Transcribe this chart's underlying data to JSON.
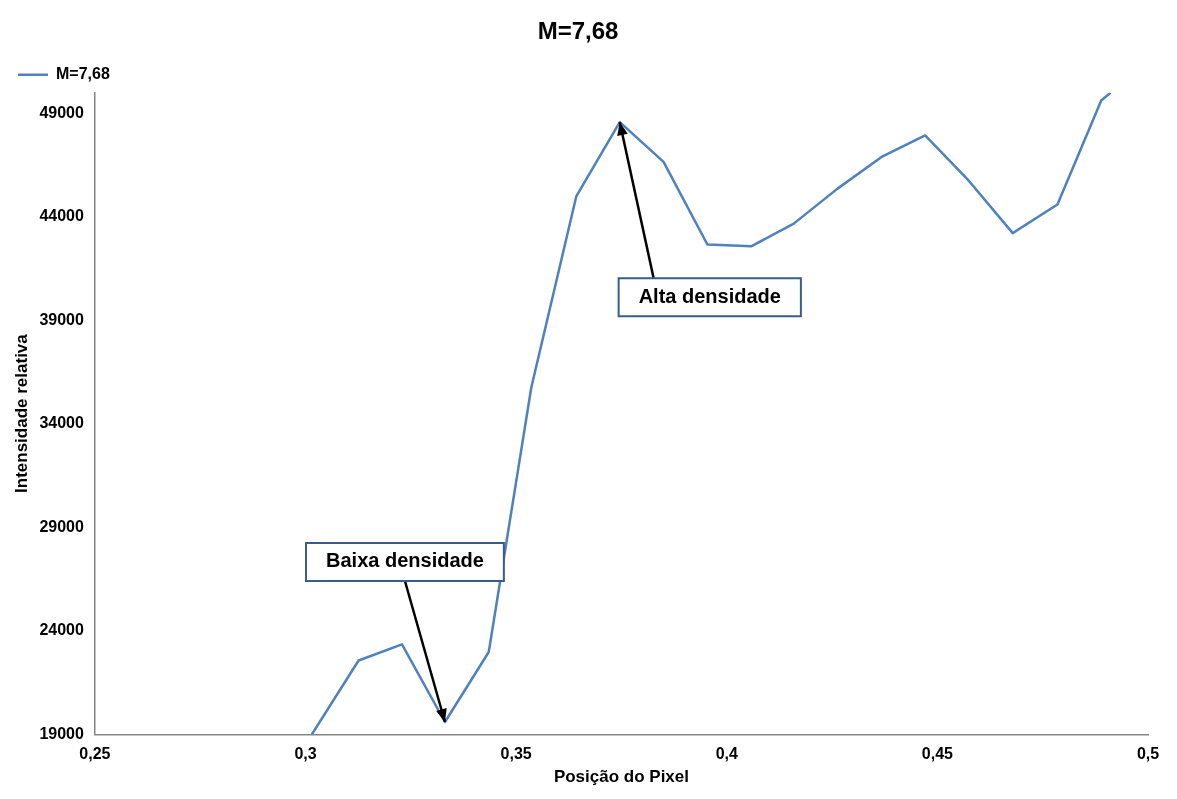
{
  "chart_data": {
    "type": "line",
    "title": "M=7,68",
    "xlabel": "Posição do Pixel",
    "ylabel": "Intensidade relativa",
    "x": [
      0.3015,
      0.3126,
      0.3229,
      0.3331,
      0.3435,
      0.3536,
      0.3643,
      0.3746,
      0.385,
      0.3954,
      0.4058,
      0.4159,
      0.4263,
      0.437,
      0.4471,
      0.4575,
      0.4679,
      0.4785,
      0.4889,
      0.4911
    ],
    "series": [
      {
        "name": "M=7,68",
        "color": "#4f81bd",
        "values": [
          19000,
          22570,
          23350,
          19600,
          22980,
          35760,
          45010,
          48580,
          46660,
          42670,
          42580,
          43680,
          45370,
          46930,
          47940,
          45740,
          43220,
          44600,
          49630,
          50000
        ]
      }
    ],
    "xlim": [
      0.25,
      0.5
    ],
    "xticks": [
      {
        "value": 0.25,
        "label": "0,25"
      },
      {
        "value": 0.3,
        "label": "0,3"
      },
      {
        "value": 0.35,
        "label": "0,35"
      },
      {
        "value": 0.4,
        "label": "0,4"
      },
      {
        "value": 0.45,
        "label": "0,45"
      },
      {
        "value": 0.5,
        "label": "0,5"
      }
    ],
    "ylim": [
      19000,
      50000
    ],
    "yticks": [
      19000,
      24000,
      29000,
      34000,
      39000,
      44000,
      49000
    ],
    "grid": false,
    "legend": "top left",
    "marker": "none",
    "line_style": "solid",
    "annotations": [
      {
        "text": "Baixa densidade",
        "x": 0.3331,
        "y": 19600
      },
      {
        "text": "Alta densidade",
        "x": 0.3746,
        "y": 48580
      }
    ]
  }
}
